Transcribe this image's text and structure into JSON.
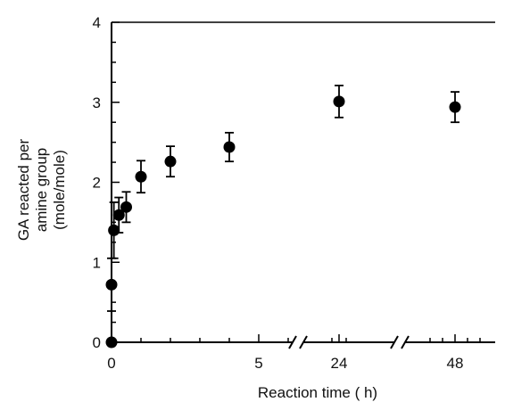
{
  "chart_data": {
    "type": "scatter",
    "title": "",
    "xlabel": "Reaction time ( h)",
    "ylabel_lines": [
      "GA reacted per",
      "amine group",
      "(mole/mole)"
    ],
    "ylim": [
      0,
      4
    ],
    "y_ticks": [
      0,
      1,
      2,
      3,
      4
    ],
    "x_tick_labels": [
      "0",
      "5",
      "24",
      "48"
    ],
    "x_breaks": [
      "between 5 and 24",
      "between 24 and 48"
    ],
    "grid": false,
    "legend": "none",
    "colors": {
      "marker": "#000000",
      "axis": "#000000"
    },
    "series": [
      {
        "points": [
          {
            "x": 0,
            "y": 0,
            "err": 0
          },
          {
            "x": 0,
            "y": 0.72,
            "err": 0.33
          },
          {
            "x": 0.08,
            "y": 1.4,
            "err": 0.35
          },
          {
            "x": 0.25,
            "y": 1.59,
            "err": 0.22
          },
          {
            "x": 0.5,
            "y": 1.69,
            "err": 0.19
          },
          {
            "x": 1,
            "y": 2.07,
            "err": 0.2
          },
          {
            "x": 2,
            "y": 2.26,
            "err": 0.19
          },
          {
            "x": 4,
            "y": 2.44,
            "err": 0.18
          },
          {
            "x": 24,
            "y": 3.01,
            "err": 0.2
          },
          {
            "x": 48,
            "y": 2.94,
            "err": 0.19
          }
        ]
      }
    ]
  }
}
